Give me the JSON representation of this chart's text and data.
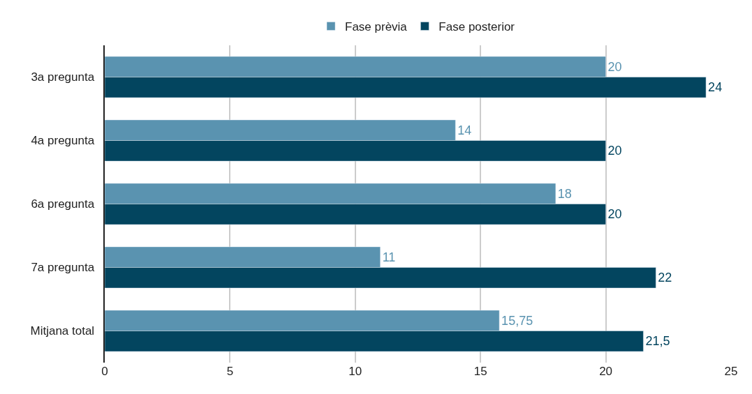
{
  "chart_data": {
    "type": "bar",
    "orientation": "horizontal",
    "categories": [
      "3a pregunta",
      "4a pregunta",
      "6a pregunta",
      "7a pregunta",
      "Mitjana total"
    ],
    "series": [
      {
        "name": "Fase prèvia",
        "color": "#5a93b0",
        "values": [
          20,
          14,
          18,
          11,
          15.75
        ],
        "value_labels": [
          "20",
          "14",
          "18",
          "11",
          "15,75"
        ]
      },
      {
        "name": "Fase posterior",
        "color": "#03455f",
        "values": [
          24,
          20,
          20,
          22,
          21.5
        ],
        "value_labels": [
          "24",
          "20",
          "20",
          "22",
          "21,5"
        ]
      }
    ],
    "xlim": [
      0,
      25
    ],
    "xticks": [
      0,
      5,
      10,
      15,
      20,
      25
    ],
    "grid": "x",
    "legend": "top"
  }
}
